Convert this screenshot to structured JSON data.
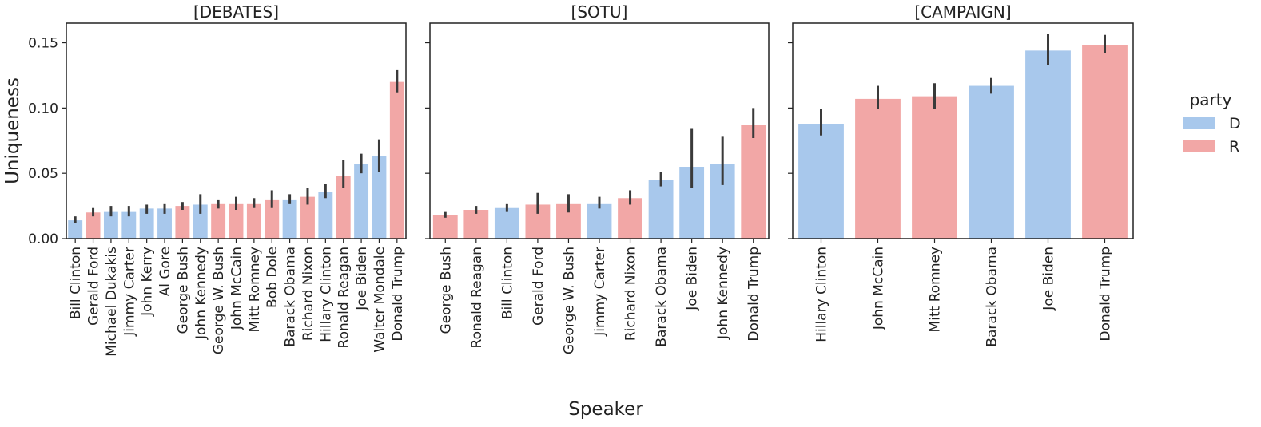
{
  "chart_data": {
    "type": "bar",
    "xlabel": "Speaker",
    "ylabel": "Uniqueness",
    "ylim": [
      0,
      0.165
    ],
    "yticks": [
      "0.00",
      "0.05",
      "0.10",
      "0.15"
    ],
    "ytick_values": [
      0,
      0.05,
      0.1,
      0.15
    ],
    "grid": false,
    "legend": {
      "title": "party",
      "position": "right",
      "entries": [
        {
          "label": "D",
          "color": "#a8c8ec"
        },
        {
          "label": "R",
          "color": "#f2a7a6"
        }
      ]
    },
    "panels": [
      {
        "title": "[DEBATES]",
        "bars": [
          {
            "label": "Bill Clinton",
            "party": "D",
            "value": 0.014,
            "err_low": 0.012,
            "err_high": 0.017
          },
          {
            "label": "Gerald Ford",
            "party": "R",
            "value": 0.02,
            "err_low": 0.017,
            "err_high": 0.024
          },
          {
            "label": "Michael Dukakis",
            "party": "D",
            "value": 0.021,
            "err_low": 0.017,
            "err_high": 0.025
          },
          {
            "label": "Jimmy Carter",
            "party": "D",
            "value": 0.021,
            "err_low": 0.017,
            "err_high": 0.025
          },
          {
            "label": "John Kerry",
            "party": "D",
            "value": 0.023,
            "err_low": 0.019,
            "err_high": 0.026
          },
          {
            "label": "Al Gore",
            "party": "D",
            "value": 0.023,
            "err_low": 0.019,
            "err_high": 0.027
          },
          {
            "label": "George Bush",
            "party": "R",
            "value": 0.025,
            "err_low": 0.022,
            "err_high": 0.028
          },
          {
            "label": "John Kennedy",
            "party": "D",
            "value": 0.026,
            "err_low": 0.019,
            "err_high": 0.034
          },
          {
            "label": "George W. Bush",
            "party": "R",
            "value": 0.027,
            "err_low": 0.023,
            "err_high": 0.03
          },
          {
            "label": "John McCain",
            "party": "R",
            "value": 0.027,
            "err_low": 0.022,
            "err_high": 0.032
          },
          {
            "label": "Mitt Romney",
            "party": "R",
            "value": 0.027,
            "err_low": 0.024,
            "err_high": 0.031
          },
          {
            "label": "Bob Dole",
            "party": "R",
            "value": 0.03,
            "err_low": 0.024,
            "err_high": 0.037
          },
          {
            "label": "Barack Obama",
            "party": "D",
            "value": 0.03,
            "err_low": 0.027,
            "err_high": 0.034
          },
          {
            "label": "Richard Nixon",
            "party": "R",
            "value": 0.032,
            "err_low": 0.026,
            "err_high": 0.039
          },
          {
            "label": "Hillary Clinton",
            "party": "D",
            "value": 0.036,
            "err_low": 0.031,
            "err_high": 0.042
          },
          {
            "label": "Ronald Reagan",
            "party": "R",
            "value": 0.048,
            "err_low": 0.039,
            "err_high": 0.06
          },
          {
            "label": "Joe Biden",
            "party": "D",
            "value": 0.057,
            "err_low": 0.05,
            "err_high": 0.065
          },
          {
            "label": "Walter Mondale",
            "party": "D",
            "value": 0.063,
            "err_low": 0.051,
            "err_high": 0.076
          },
          {
            "label": "Donald Trump",
            "party": "R",
            "value": 0.12,
            "err_low": 0.112,
            "err_high": 0.129
          }
        ]
      },
      {
        "title": "[SOTU]",
        "bars": [
          {
            "label": "George Bush",
            "party": "R",
            "value": 0.018,
            "err_low": 0.016,
            "err_high": 0.021
          },
          {
            "label": "Ronald Reagan",
            "party": "R",
            "value": 0.022,
            "err_low": 0.019,
            "err_high": 0.025
          },
          {
            "label": "Bill Clinton",
            "party": "D",
            "value": 0.024,
            "err_low": 0.021,
            "err_high": 0.027
          },
          {
            "label": "Gerald Ford",
            "party": "R",
            "value": 0.026,
            "err_low": 0.019,
            "err_high": 0.035
          },
          {
            "label": "George W. Bush",
            "party": "R",
            "value": 0.027,
            "err_low": 0.02,
            "err_high": 0.034
          },
          {
            "label": "Jimmy Carter",
            "party": "D",
            "value": 0.027,
            "err_low": 0.023,
            "err_high": 0.032
          },
          {
            "label": "Richard Nixon",
            "party": "R",
            "value": 0.031,
            "err_low": 0.026,
            "err_high": 0.037
          },
          {
            "label": "Barack Obama",
            "party": "D",
            "value": 0.045,
            "err_low": 0.04,
            "err_high": 0.051
          },
          {
            "label": "Joe Biden",
            "party": "D",
            "value": 0.055,
            "err_low": 0.039,
            "err_high": 0.084
          },
          {
            "label": "John Kennedy",
            "party": "D",
            "value": 0.057,
            "err_low": 0.041,
            "err_high": 0.078
          },
          {
            "label": "Donald Trump",
            "party": "R",
            "value": 0.087,
            "err_low": 0.077,
            "err_high": 0.1
          }
        ]
      },
      {
        "title": "[CAMPAIGN]",
        "bars": [
          {
            "label": "Hillary Clinton",
            "party": "D",
            "value": 0.088,
            "err_low": 0.079,
            "err_high": 0.099
          },
          {
            "label": "John McCain",
            "party": "R",
            "value": 0.107,
            "err_low": 0.099,
            "err_high": 0.117
          },
          {
            "label": "Mitt Romney",
            "party": "R",
            "value": 0.109,
            "err_low": 0.099,
            "err_high": 0.119
          },
          {
            "label": "Barack Obama",
            "party": "D",
            "value": 0.117,
            "err_low": 0.111,
            "err_high": 0.123
          },
          {
            "label": "Joe Biden",
            "party": "D",
            "value": 0.144,
            "err_low": 0.133,
            "err_high": 0.157
          },
          {
            "label": "Donald Trump",
            "party": "R",
            "value": 0.148,
            "err_low": 0.142,
            "err_high": 0.156
          }
        ]
      }
    ]
  }
}
